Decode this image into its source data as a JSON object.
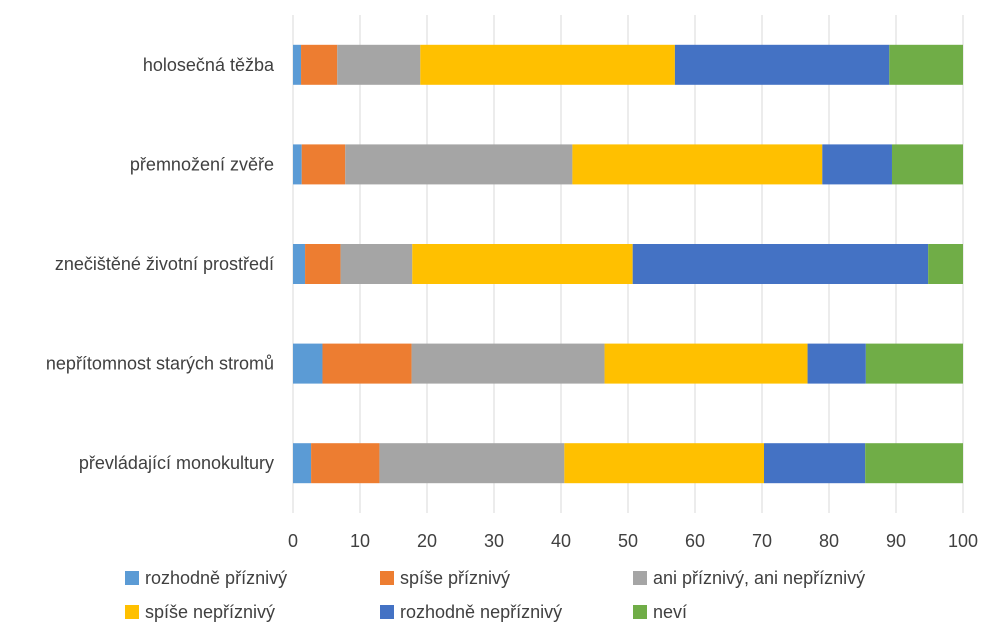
{
  "chart_data": {
    "type": "bar",
    "orientation": "horizontal",
    "stacked": true,
    "title": "",
    "xlabel": "",
    "ylabel": "",
    "xlim": [
      0,
      100
    ],
    "xticks": [
      "0",
      "10",
      "20",
      "30",
      "40",
      "50",
      "60",
      "70",
      "80",
      "90",
      "100"
    ],
    "grid": "vertical",
    "legend_position": "bottom",
    "categories": [
      "holosečná těžba",
      "přemnožení zvěře",
      "znečištěné životní prostředí",
      "nepřítomnost starých stromů",
      "převládající monokultury"
    ],
    "series": [
      {
        "name": "rozhodně příznivý",
        "color": "#5B9BD5",
        "values": [
          1.2,
          1.3,
          1.8,
          4.4,
          2.7
        ]
      },
      {
        "name": "spíše příznivý",
        "color": "#ED7D31",
        "values": [
          5.4,
          6.5,
          5.3,
          13.3,
          10.2
        ]
      },
      {
        "name": "ani příznivý, ani nepříznivý",
        "color": "#A5A5A5",
        "values": [
          12.4,
          33.9,
          10.7,
          28.8,
          27.6
        ]
      },
      {
        "name": "spíše nepříznivý",
        "color": "#FFC000",
        "values": [
          38.0,
          37.3,
          32.9,
          30.3,
          29.8
        ]
      },
      {
        "name": "rozhodně nepříznivý",
        "color": "#4472C4",
        "values": [
          32.0,
          10.4,
          44.1,
          8.7,
          15.1
        ]
      },
      {
        "name": "neví",
        "color": "#70AD47",
        "values": [
          11.0,
          10.6,
          5.2,
          14.5,
          14.6
        ]
      }
    ]
  }
}
